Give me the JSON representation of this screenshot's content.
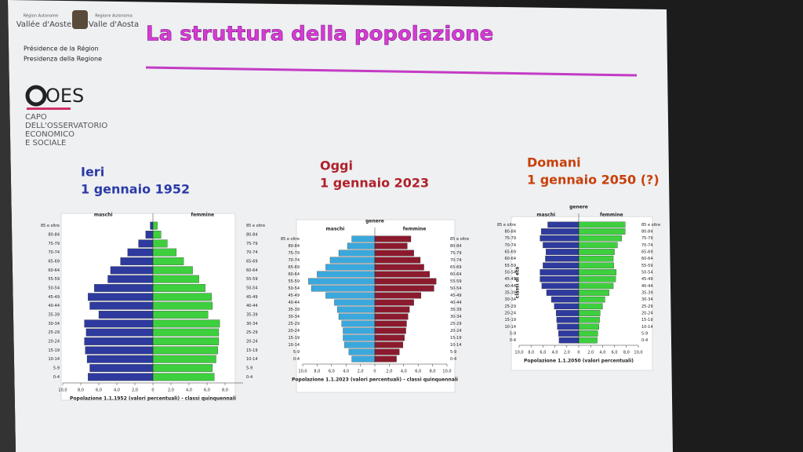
{
  "header": {
    "logo_left_top": "Région Autonome",
    "logo_left_name": "Vallée d'Aoste",
    "logo_right_top": "Regione Autonoma",
    "logo_right_name": "Valle d'Aosta",
    "line1": "Présidence de la Région",
    "line2": "Presidenza della Regione",
    "title": "La struttura della popolazione",
    "oes_logo": "OES",
    "oes_lines": [
      "CAPO",
      "DELL'OSSERVATORIO",
      "ECONOMICO",
      "E SOCIALE"
    ]
  },
  "chart_data": [
    {
      "type": "pyramid",
      "title": "Ieri",
      "subtitle": "1 gennaio 1952",
      "title_color": "#2b3aa8",
      "xlabel": "Popolazione 1.1.1952 (valori percentuali) - classi quinquennali",
      "categories": [
        "0-4",
        "5-9",
        "10-14",
        "15-19",
        "20-24",
        "25-29",
        "30-34",
        "35-39",
        "40-44",
        "45-49",
        "50-54",
        "55-59",
        "60-64",
        "65-69",
        "70-74",
        "75-79",
        "80-84",
        "85 e oltre"
      ],
      "series": [
        {
          "name": "maschi",
          "color": "#2e3a9e",
          "values": [
            7.2,
            7.0,
            7.3,
            7.5,
            7.6,
            7.4,
            7.6,
            6.0,
            7.0,
            7.2,
            6.5,
            5.0,
            4.7,
            3.6,
            2.8,
            1.6,
            0.8,
            0.3
          ]
        },
        {
          "name": "femmine",
          "color": "#3ecf3e",
          "values": [
            6.8,
            6.6,
            7.0,
            7.2,
            7.3,
            7.3,
            7.4,
            6.1,
            6.6,
            6.5,
            5.8,
            5.1,
            4.4,
            3.4,
            2.6,
            1.6,
            0.9,
            0.5
          ]
        }
      ],
      "xlim": [
        0,
        10
      ],
      "xticks_male": [
        {
          "value": 10,
          "label": "10,0"
        },
        {
          "value": 8,
          "label": "8,0"
        },
        {
          "value": 6,
          "label": "6,0"
        },
        {
          "value": 4,
          "label": "4,0"
        },
        {
          "value": 2,
          "label": "2,0"
        },
        0
      ],
      "xticks_female": [
        {
          "value": 2,
          "label": "2,0"
        },
        {
          "value": 4,
          "label": "4,0"
        },
        {
          "value": 6,
          "label": "6,0"
        },
        {
          "value": 8,
          "label": "8,0"
        }
      ]
    },
    {
      "type": "pyramid",
      "title": "Oggi",
      "subtitle": "1 gennaio 2023",
      "title_color": "#b0202a",
      "legend_title": "genere",
      "xlabel": "Popolazione 1.1.2023 (valori percentuali) - classi quinquennali",
      "categories": [
        "0-4",
        "5-9",
        "10-14",
        "15-19",
        "20-24",
        "25-29",
        "30-34",
        "35-39",
        "40-44",
        "45-49",
        "50-54",
        "55-59",
        "60-64",
        "65-69",
        "70-74",
        "75-79",
        "80-84",
        "85 e oltre"
      ],
      "series": [
        {
          "name": "maschi",
          "color": "#3aa8dc",
          "values": [
            3.2,
            3.6,
            4.2,
            4.4,
            4.4,
            4.6,
            5.0,
            5.2,
            5.6,
            6.8,
            8.8,
            9.2,
            8.0,
            6.8,
            6.2,
            5.0,
            3.8,
            3.2
          ]
        },
        {
          "name": "femmine",
          "color": "#8c1a2e",
          "values": [
            3.0,
            3.4,
            3.9,
            4.1,
            4.3,
            4.4,
            4.6,
            4.8,
            5.4,
            6.4,
            8.2,
            8.5,
            7.6,
            6.8,
            6.3,
            5.4,
            4.5,
            5.0
          ]
        }
      ],
      "xlim": [
        0,
        10
      ],
      "xticks_male": [
        {
          "value": 10,
          "label": "10,0"
        },
        {
          "value": 8,
          "label": "8,0"
        },
        {
          "value": 6,
          "label": "6,0"
        },
        {
          "value": 4,
          "label": "4,0"
        },
        {
          "value": 2,
          "label": "2,0"
        },
        0
      ],
      "xticks_female": [
        {
          "value": 2,
          "label": "2,0"
        },
        {
          "value": 4,
          "label": "4,0"
        },
        {
          "value": 6,
          "label": "6,0"
        },
        {
          "value": 8,
          "label": "8,0"
        },
        {
          "value": 10,
          "label": "10,0"
        }
      ]
    },
    {
      "type": "pyramid",
      "title": "Domani",
      "subtitle": "1 gennaio 2050 (?)",
      "title_color": "#c8400a",
      "legend_title": "genere",
      "ylabel": "classi di età",
      "xlabel": "Popolazione 1.1.2050 (valori percentuali)",
      "categories": [
        "0-4",
        "5-9",
        "10-14",
        "15-19",
        "20-24",
        "25-29",
        "30-34",
        "35-39",
        "40-44",
        "45-49",
        "50-54",
        "55-59",
        "60-64",
        "65-69",
        "70-74",
        "75-79",
        "80-84",
        "85 e oltre"
      ],
      "series": [
        {
          "name": "maschi",
          "color": "#2e3a9e",
          "values": [
            3.3,
            3.4,
            3.6,
            3.7,
            3.8,
            4.1,
            4.6,
            5.4,
            6.2,
            6.5,
            6.5,
            6.0,
            5.6,
            5.5,
            6.0,
            6.5,
            6.3,
            5.2
          ]
        },
        {
          "name": "femmine",
          "color": "#3ecf3e",
          "values": [
            3.1,
            3.2,
            3.4,
            3.5,
            3.6,
            4.0,
            4.4,
            5.1,
            5.8,
            6.2,
            6.3,
            5.9,
            5.8,
            6.0,
            6.5,
            7.2,
            7.8,
            7.8
          ]
        }
      ],
      "xlim": [
        0,
        10
      ],
      "xticks_male": [
        {
          "value": 10,
          "label": "10,0"
        },
        {
          "value": 8,
          "label": "8,0"
        },
        {
          "value": 6,
          "label": "6,0"
        },
        {
          "value": 4,
          "label": "4,0"
        },
        {
          "value": 2,
          "label": "2,0"
        },
        0
      ],
      "xticks_female": [
        {
          "value": 2,
          "label": "2,0"
        },
        {
          "value": 4,
          "label": "4,0"
        },
        {
          "value": 6,
          "label": "6,0"
        },
        {
          "value": 8,
          "label": "8,0"
        },
        {
          "value": 10,
          "label": "10,0"
        }
      ]
    }
  ]
}
